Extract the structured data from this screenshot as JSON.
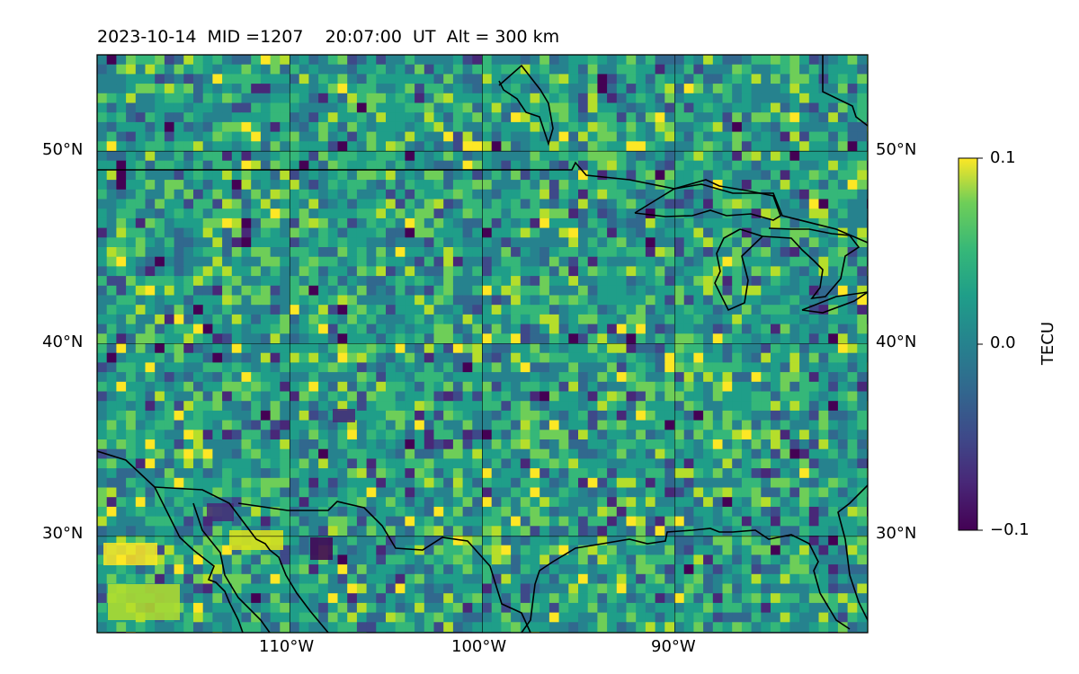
{
  "title": "2023-10-14  MID =1207    20:07:00  UT  Alt = 300 km",
  "map": {
    "lon_range": [
      -120,
      -80
    ],
    "lat_range": [
      25,
      55
    ],
    "lat_ticks": [
      {
        "value": 50,
        "label": "50°N"
      },
      {
        "value": 40,
        "label": "40°N"
      },
      {
        "value": 30,
        "label": "30°N"
      }
    ],
    "lon_ticks": [
      {
        "value": -110,
        "label": "110°W"
      },
      {
        "value": -100,
        "label": "100°W"
      },
      {
        "value": -90,
        "label": "90°W"
      }
    ],
    "gridlines": true
  },
  "colorbar": {
    "label": "TECU",
    "colormap": "viridis",
    "vmin": -0.1,
    "vmax": 0.1,
    "ticks": [
      {
        "value": 0.1,
        "label": "0.1"
      },
      {
        "value": 0.0,
        "label": "0.0"
      },
      {
        "value": -0.1,
        "label": "−0.1"
      }
    ]
  },
  "colors": {
    "coastline": "#000000",
    "grid": "#000000",
    "viridis_low": "#440154",
    "viridis_mid": "#21918c",
    "viridis_high": "#fde725"
  }
}
